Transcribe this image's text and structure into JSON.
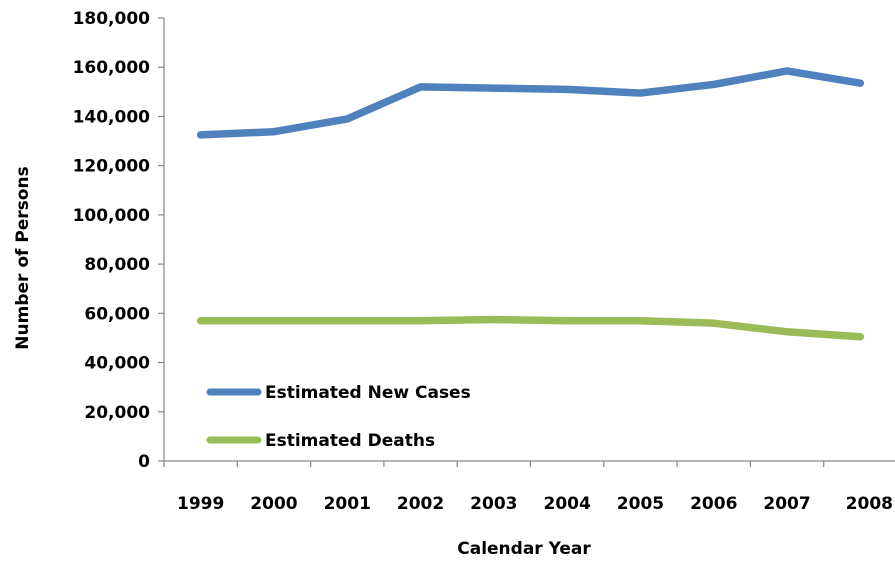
{
  "chart_data": {
    "type": "line",
    "title": "",
    "xlabel": "Calendar Year",
    "ylabel": "Number of Persons",
    "categories": [
      "1999",
      "2000",
      "2001",
      "2002",
      "2003",
      "2004",
      "2005",
      "2006",
      "2007",
      "2008"
    ],
    "ylim": [
      0,
      180000
    ],
    "yticks": [
      0,
      20000,
      40000,
      60000,
      80000,
      100000,
      120000,
      140000,
      160000,
      180000
    ],
    "ytick_labels": [
      "0",
      "20,000",
      "40,000",
      "60,000",
      "80,000",
      "100,000",
      "120,000",
      "140,000",
      "160,000",
      "180,000"
    ],
    "grid": false,
    "legend_position": "bottom-left",
    "series": [
      {
        "name": "Estimated New Cases",
        "color": "#4F81BD",
        "values": [
          132500,
          133800,
          139000,
          152000,
          151500,
          151000,
          149500,
          153000,
          158500,
          153500
        ]
      },
      {
        "name": "Estimated Deaths",
        "color": "#9BBB59",
        "values": [
          57000,
          57000,
          57000,
          57000,
          57500,
          57000,
          57000,
          56000,
          52500,
          50500
        ]
      }
    ]
  }
}
